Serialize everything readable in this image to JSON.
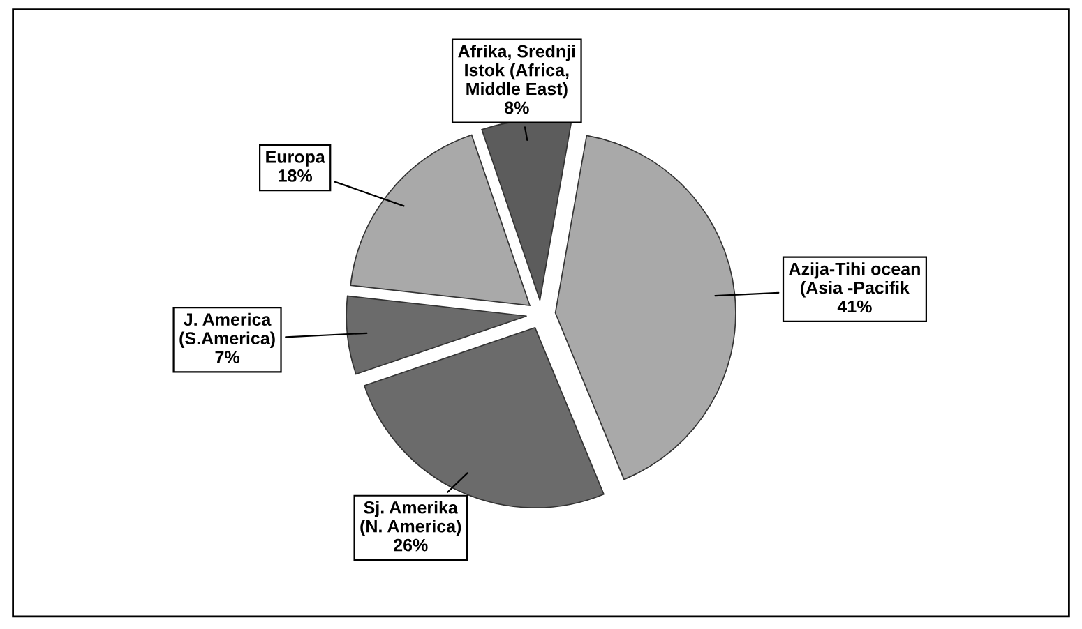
{
  "chart_data": {
    "type": "pie",
    "categories": [
      "Azija-Tihi ocean\n(Asia -Pacifik",
      "Sj. Amerika\n(N. America)",
      "J. America\n(S.America)",
      "Europa",
      "Afrika, Srednji\nIstok (Africa,\nMiddle East)"
    ],
    "values": [
      41,
      26,
      7,
      18,
      8
    ],
    "value_labels": [
      "41%",
      "26%",
      "7%",
      "18%",
      "8%"
    ],
    "colors": [
      "#a9a9a9",
      "#6b6b6b",
      "#6b6b6b",
      "#a9a9a9",
      "#5c5c5c"
    ],
    "legend": false
  }
}
